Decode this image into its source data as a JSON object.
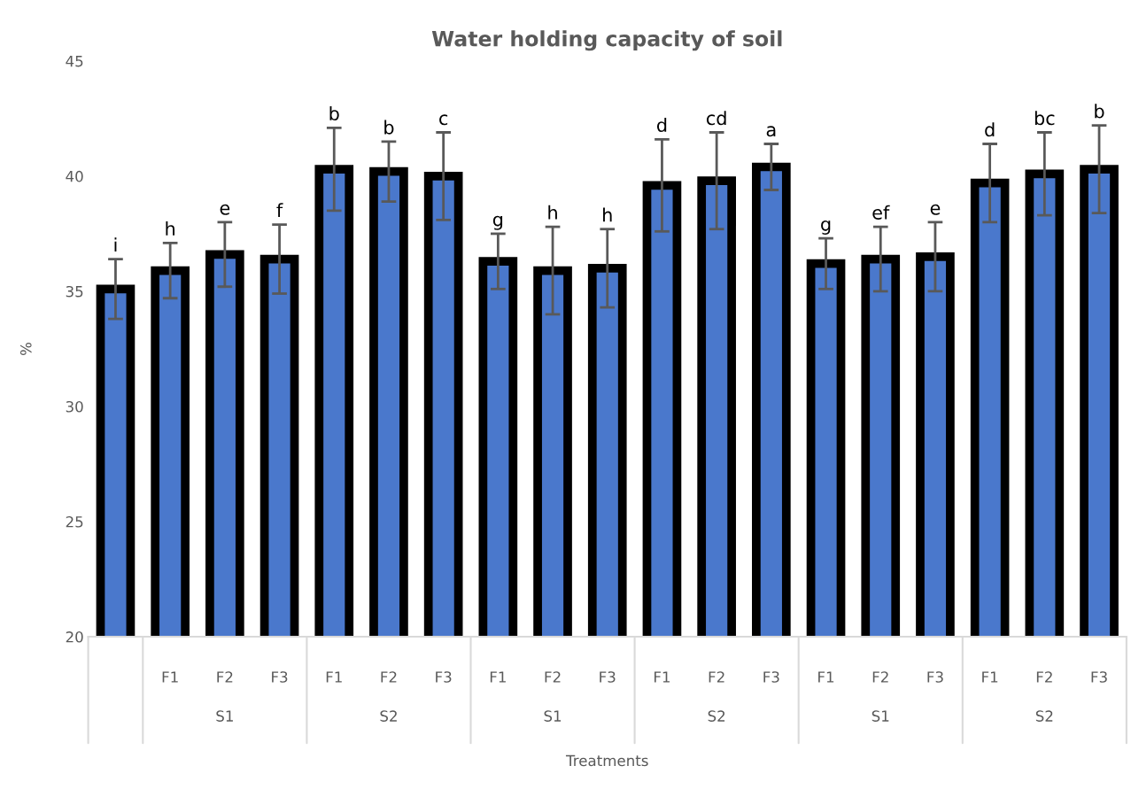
{
  "chart_data": {
    "type": "bar",
    "title": "Water holding capacity of soil",
    "xlabel": "Treatments",
    "ylabel": "%",
    "categories": [
      null,
      "F1",
      "F2",
      "F3",
      "F1",
      "F2",
      "F3",
      "F1",
      "F2",
      "F3",
      "F1",
      "F2",
      "F3",
      "F1",
      "F2",
      "F3",
      "F1",
      "F2",
      "F3"
    ],
    "values": [
      35.1,
      35.9,
      36.6,
      36.4,
      40.3,
      40.2,
      40.0,
      36.3,
      35.9,
      36.0,
      39.6,
      39.8,
      40.4,
      36.2,
      36.4,
      36.5,
      39.7,
      40.1,
      40.3
    ],
    "errors": [
      1.3,
      1.2,
      1.4,
      1.5,
      1.8,
      1.3,
      1.9,
      1.2,
      1.9,
      1.7,
      2.0,
      2.1,
      1.0,
      1.1,
      1.4,
      1.5,
      1.7,
      1.8,
      1.9
    ],
    "value_labels": [
      "i",
      "h",
      "e",
      "f",
      "b",
      "b",
      "c",
      "g",
      "h",
      "h",
      "d",
      "cd",
      "a",
      "g",
      "ef",
      "e",
      "d",
      "bc",
      "b"
    ],
    "color": "#4a78cc",
    "annotations": [
      "S1",
      "S2",
      "S1",
      "S2",
      "S1",
      "S2"
    ],
    "ylim": [
      20,
      45
    ],
    "yticks": [
      20,
      25,
      30,
      35,
      40,
      45
    ],
    "grid": false,
    "legend": false
  }
}
